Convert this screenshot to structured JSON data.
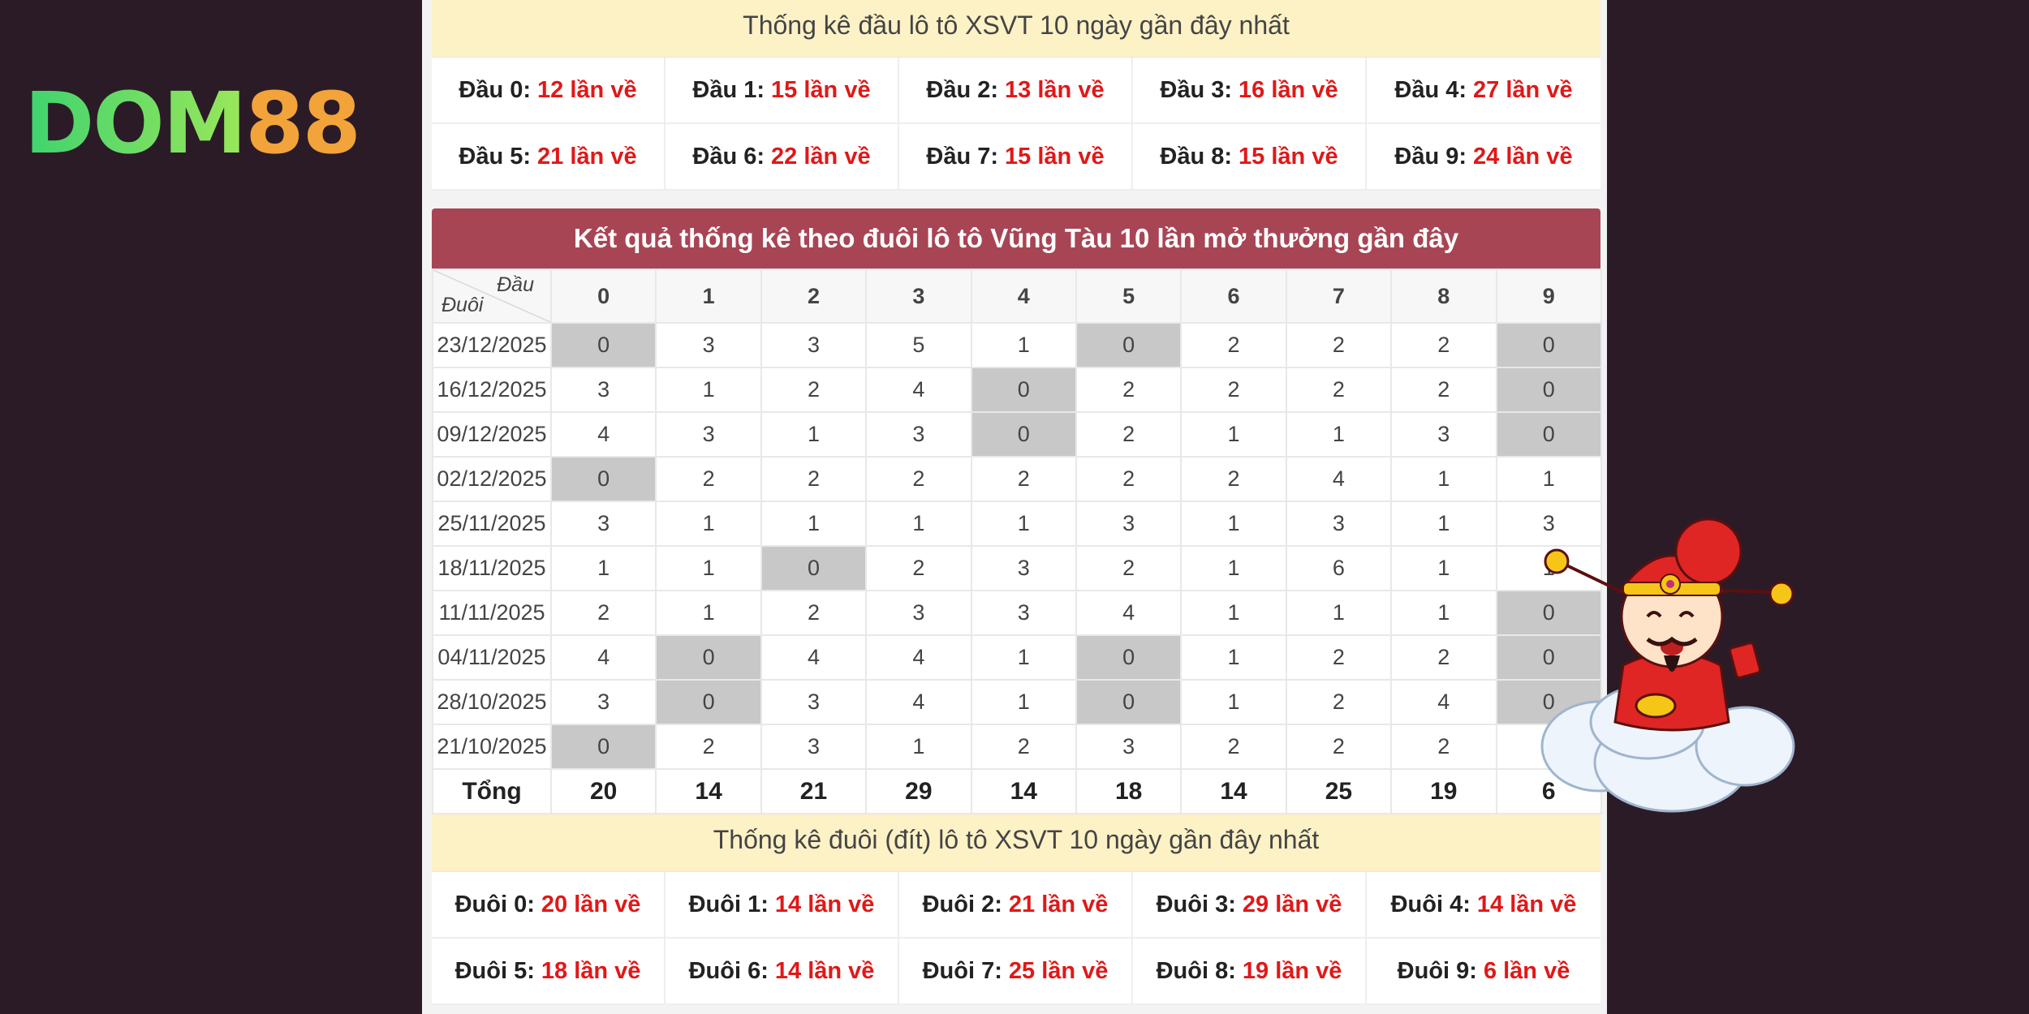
{
  "logo": {
    "part1": "DOM",
    "part2": "88"
  },
  "head_section": {
    "title": "Thống kê đầu lô tô XSVT 10 ngày gần đây nhất",
    "items": [
      {
        "label": "Đầu 0:",
        "value": "12 lần về"
      },
      {
        "label": "Đầu 1:",
        "value": "15 lần về"
      },
      {
        "label": "Đầu 2:",
        "value": "13 lần về"
      },
      {
        "label": "Đầu 3:",
        "value": "16 lần về"
      },
      {
        "label": "Đầu 4:",
        "value": "27 lần về"
      },
      {
        "label": "Đầu 5:",
        "value": "21 lần về"
      },
      {
        "label": "Đầu 6:",
        "value": "22 lần về"
      },
      {
        "label": "Đầu 7:",
        "value": "15 lần về"
      },
      {
        "label": "Đầu 8:",
        "value": "15 lần về"
      },
      {
        "label": "Đầu 9:",
        "value": "24 lần về"
      }
    ]
  },
  "table": {
    "title": "Kết quả thống kê theo đuôi lô tô Vũng Tàu 10 lần mở thưởng gần đây",
    "corner_top": "Đầu",
    "corner_bottom": "Đuôi",
    "columns": [
      "0",
      "1",
      "2",
      "3",
      "4",
      "5",
      "6",
      "7",
      "8",
      "9"
    ],
    "rows": [
      {
        "date": "23/12/2025",
        "values": [
          "0",
          "3",
          "3",
          "5",
          "1",
          "0",
          "2",
          "2",
          "2",
          "0"
        ]
      },
      {
        "date": "16/12/2025",
        "values": [
          "3",
          "1",
          "2",
          "4",
          "0",
          "2",
          "2",
          "2",
          "2",
          "0"
        ]
      },
      {
        "date": "09/12/2025",
        "values": [
          "4",
          "3",
          "1",
          "3",
          "0",
          "2",
          "1",
          "1",
          "3",
          "0"
        ]
      },
      {
        "date": "02/12/2025",
        "values": [
          "0",
          "2",
          "2",
          "2",
          "2",
          "2",
          "2",
          "4",
          "1",
          "1"
        ]
      },
      {
        "date": "25/11/2025",
        "values": [
          "3",
          "1",
          "1",
          "1",
          "1",
          "3",
          "1",
          "3",
          "1",
          "3"
        ]
      },
      {
        "date": "18/11/2025",
        "values": [
          "1",
          "1",
          "0",
          "2",
          "3",
          "2",
          "1",
          "6",
          "1",
          "1"
        ]
      },
      {
        "date": "11/11/2025",
        "values": [
          "2",
          "1",
          "2",
          "3",
          "3",
          "4",
          "1",
          "1",
          "1",
          "0"
        ]
      },
      {
        "date": "04/11/2025",
        "values": [
          "4",
          "0",
          "4",
          "4",
          "1",
          "0",
          "1",
          "2",
          "2",
          "0"
        ]
      },
      {
        "date": "28/10/2025",
        "values": [
          "3",
          "0",
          "3",
          "4",
          "1",
          "0",
          "1",
          "2",
          "4",
          "0"
        ]
      },
      {
        "date": "21/10/2025",
        "values": [
          "0",
          "2",
          "3",
          "1",
          "2",
          "3",
          "2",
          "2",
          "2",
          ""
        ]
      }
    ],
    "total_label": "Tổng",
    "totals": [
      "20",
      "14",
      "21",
      "29",
      "14",
      "18",
      "14",
      "25",
      "19",
      "6"
    ]
  },
  "tail_section": {
    "title": "Thống kê đuôi (đít) lô tô XSVT 10 ngày gần đây nhất",
    "items": [
      {
        "label": "Đuôi 0:",
        "value": "20 lần về"
      },
      {
        "label": "Đuôi 1:",
        "value": "14 lần về"
      },
      {
        "label": "Đuôi 2:",
        "value": "21 lần về"
      },
      {
        "label": "Đuôi 3:",
        "value": "29 lần về"
      },
      {
        "label": "Đuôi 4:",
        "value": "14 lần về"
      },
      {
        "label": "Đuôi 5:",
        "value": "18 lần về"
      },
      {
        "label": "Đuôi 6:",
        "value": "14 lần về"
      },
      {
        "label": "Đuôi 7:",
        "value": "25 lần về"
      },
      {
        "label": "Đuôi 8:",
        "value": "19 lần về"
      },
      {
        "label": "Đuôi 9:",
        "value": "6 lần về"
      }
    ]
  },
  "colors": {
    "accent": "#a84554",
    "highlight_red": "#e01818",
    "band": "#fdf1c6",
    "zero_cell": "#c8c8c8"
  }
}
